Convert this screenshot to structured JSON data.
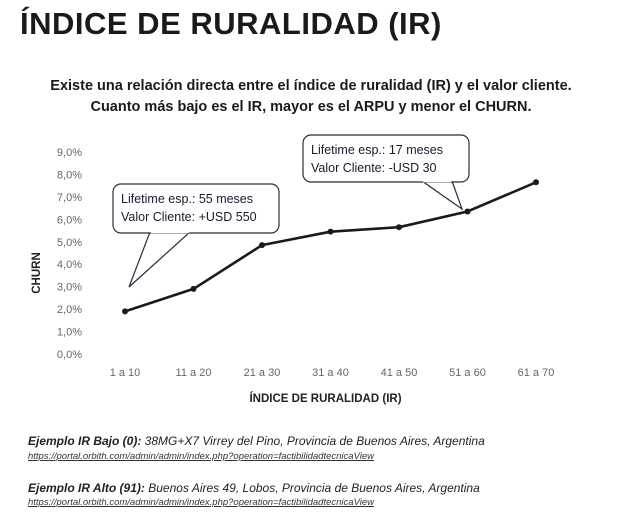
{
  "title": "ÍNDICE DE RURALIDAD (IR)",
  "subtitle_line1": "Existe una relación directa entre el índice de ruralidad (IR) y el valor cliente.",
  "subtitle_line2": "Cuanto más bajo es el IR, mayor es el ARPU y menor el CHURN.",
  "chart_data": {
    "type": "line",
    "categories": [
      "1 a 10",
      "11 a 20",
      "21 a 30",
      "31 a 40",
      "41 a 50",
      "51 a 60",
      "61 a 70"
    ],
    "series": [
      {
        "values": [
          1.9,
          2.9,
          4.85,
          5.45,
          5.65,
          6.35,
          7.65
        ]
      }
    ],
    "xlabel": "ÍNDICE DE RURALIDAD (IR)",
    "ylabel": "CHURN",
    "ylim": [
      0,
      9
    ],
    "yticks": [
      "0,0%",
      "1,0%",
      "2,0%",
      "3,0%",
      "4,0%",
      "5,0%",
      "6,0%",
      "7,0%",
      "8,0%",
      "9,0%"
    ],
    "grid": false,
    "line_color": "#1a1a1a",
    "annotations": [
      {
        "line1": "Lifetime esp.: 55 meses",
        "line2": "Valor Cliente: +USD 550",
        "points_to_index": 0
      },
      {
        "line1": "Lifetime esp.: 17 meses",
        "line2": "Valor Cliente: -USD 30",
        "points_to_index": 5
      }
    ]
  },
  "examples": {
    "low_label": "Ejemplo IR Bajo (0):",
    "low_text": " 38MG+X7 Virrey del Pino, Provincia de Buenos Aires, Argentina",
    "low_url": "https://portal.orbith.com/admin/admin/index.php?operation=factibilidadtecnicaView",
    "high_label": "Ejemplo IR Alto (91):",
    "high_text": " Buenos Aires 49, Lobos, Provincia de Buenos Aires, Argentina",
    "high_url": "https://portal.orbith.com/admin/admin/index.php?operation=factibilidadtecnicaView"
  }
}
